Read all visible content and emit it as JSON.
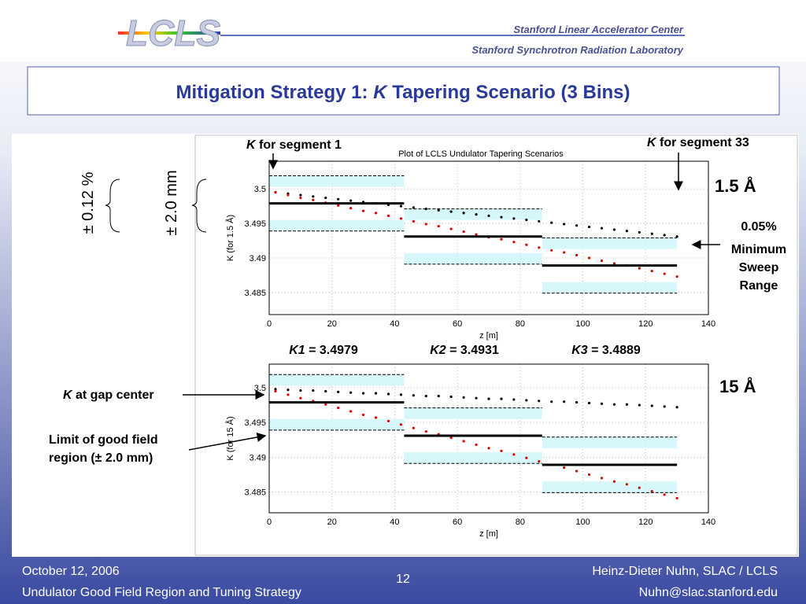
{
  "header": {
    "logo": "LCLS",
    "org1": "Stanford Linear Accelerator Center",
    "org2": "Stanford Synchrotron Radiation Laboratory"
  },
  "title": {
    "part1": "Mitigation Strategy 1: ",
    "italic": "K",
    "part2": " Tapering Scenario (3 Bins)"
  },
  "annotations": {
    "seg1": {
      "italic": "K",
      "rest": " for segment 1"
    },
    "seg33": {
      "italic": "K",
      "rest": " for segment 33"
    },
    "wl_top": "1.5 Å",
    "wl_bottom": "15 Å",
    "percent": "0.05%",
    "sweep": [
      "Minimum",
      "Sweep",
      "Range"
    ],
    "pm_percent": "± 0.12 %",
    "pm_mm": "± 2.0 mm",
    "gap_center": {
      "italic": "K",
      "rest": " at gap center"
    },
    "limit": [
      "Limit of good field",
      "region (± 2.0 mm)"
    ],
    "k_labels": [
      {
        "name": "K1",
        "text": " = 3.4979"
      },
      {
        "name": "K2",
        "text": " = 3.4931"
      },
      {
        "name": "K3",
        "text": " = 3.4889"
      }
    ]
  },
  "footer": {
    "date": "October 12, 2006",
    "subject": "Undulator Good Field Region and Tuning Strategy",
    "page": "12",
    "author": "Heinz-Dieter Nuhn, SLAC / LCLS",
    "email": "Nuhn@slac.stanford.edu"
  },
  "chart_data": [
    {
      "type": "scatter",
      "title": "Plot of LCLS Undulator Tapering Scenarios",
      "xlabel": "z [m]",
      "ylabel": "K (for 1.5 Å)",
      "xlim": [
        0,
        140
      ],
      "xticks": [
        0,
        20,
        40,
        60,
        80,
        100,
        120,
        140
      ],
      "ylim": [
        3.4818,
        3.504
      ],
      "yticks": [
        3.485,
        3.49,
        3.495,
        3.5
      ],
      "grid": true,
      "x": [
        2,
        6,
        10,
        14,
        18,
        22,
        26,
        30,
        34,
        38,
        42,
        46,
        50,
        54,
        58,
        62,
        66,
        70,
        74,
        78,
        82,
        86,
        90,
        94,
        98,
        102,
        106,
        110,
        114,
        118,
        122,
        126,
        130
      ],
      "series": [
        {
          "color": "#000000",
          "values": [
            3.4995,
            3.4993,
            3.4991,
            3.4989,
            3.4987,
            3.4985,
            3.4983,
            3.4981,
            3.4979,
            3.4977,
            3.4975,
            3.4973,
            3.4971,
            3.4969,
            3.4967,
            3.4965,
            3.4963,
            3.4961,
            3.4959,
            3.4957,
            3.4955,
            3.4953,
            3.4951,
            3.4949,
            3.4947,
            3.4945,
            3.4943,
            3.4941,
            3.4939,
            3.4937,
            3.4935,
            3.4933,
            3.4931
          ]
        },
        {
          "color": "#e00000",
          "values": [
            3.4995,
            3.4991,
            3.4987,
            3.4984,
            3.498,
            3.4976,
            3.4972,
            3.4968,
            3.4965,
            3.4961,
            3.4957,
            3.4953,
            3.4949,
            3.4946,
            3.4942,
            3.4938,
            3.4934,
            3.493,
            3.4927,
            3.4923,
            3.4919,
            3.4915,
            3.4911,
            3.4908,
            3.4904,
            3.49,
            3.4896,
            3.4892,
            3.4889,
            3.4885,
            3.4881,
            3.4877,
            3.4873
          ]
        }
      ],
      "bins": [
        {
          "z": [
            0,
            43
          ],
          "k": 3.4979,
          "upper": [
            3.5019,
            3.5003
          ],
          "lower": [
            3.4939,
            3.4955
          ]
        },
        {
          "z": [
            43,
            87
          ],
          "k": 3.4931,
          "upper": [
            3.4971,
            3.4955
          ],
          "lower": [
            3.4891,
            3.4907
          ]
        },
        {
          "z": [
            87,
            130
          ],
          "k": 3.4889,
          "upper": [
            3.4929,
            3.4913
          ],
          "lower": [
            3.4849,
            3.4865
          ]
        }
      ]
    },
    {
      "type": "scatter",
      "xlabel": "z [m]",
      "ylabel": "K (for 15 Å)",
      "xlim": [
        0,
        140
      ],
      "xticks": [
        0,
        20,
        40,
        60,
        80,
        100,
        120,
        140
      ],
      "ylim": [
        3.482,
        3.5034
      ],
      "yticks": [
        3.485,
        3.49,
        3.495,
        3.5
      ],
      "grid": true,
      "x": [
        2,
        6,
        10,
        14,
        18,
        22,
        26,
        30,
        34,
        38,
        42,
        46,
        50,
        54,
        58,
        62,
        66,
        70,
        74,
        78,
        82,
        86,
        90,
        94,
        98,
        102,
        106,
        110,
        114,
        118,
        122,
        126,
        130
      ],
      "series": [
        {
          "color": "#000000",
          "values": [
            3.4998,
            3.4997,
            3.4996,
            3.4996,
            3.4995,
            3.4994,
            3.4993,
            3.4992,
            3.4992,
            3.4991,
            3.499,
            3.4989,
            3.4988,
            3.4988,
            3.4987,
            3.4986,
            3.4985,
            3.4984,
            3.4984,
            3.4983,
            3.4982,
            3.4981,
            3.498,
            3.498,
            3.4979,
            3.4978,
            3.4977,
            3.4976,
            3.4976,
            3.4975,
            3.4974,
            3.4973,
            3.4972
          ]
        },
        {
          "color": "#e00000",
          "values": [
            3.4995,
            3.499,
            3.4985,
            3.4981,
            3.4976,
            3.4971,
            3.4966,
            3.4961,
            3.4957,
            3.4952,
            3.4947,
            3.4942,
            3.4937,
            3.4933,
            3.4928,
            3.4923,
            3.4918,
            3.4913,
            3.4909,
            3.4904,
            3.4899,
            3.4894,
            3.4889,
            3.4885,
            3.488,
            3.4875,
            3.487,
            3.4865,
            3.4861,
            3.4856,
            3.4851,
            3.4846,
            3.4841
          ]
        }
      ],
      "bins": [
        {
          "z": [
            0,
            43
          ],
          "k": 3.4979,
          "upper": [
            3.5019,
            3.5003
          ],
          "lower": [
            3.4939,
            3.4955
          ]
        },
        {
          "z": [
            43,
            87
          ],
          "k": 3.4931,
          "upper": [
            3.4971,
            3.4955
          ],
          "lower": [
            3.4891,
            3.4907
          ]
        },
        {
          "z": [
            87,
            130
          ],
          "k": 3.4889,
          "upper": [
            3.4929,
            3.4913
          ],
          "lower": [
            3.4849,
            3.4865
          ]
        }
      ]
    }
  ]
}
